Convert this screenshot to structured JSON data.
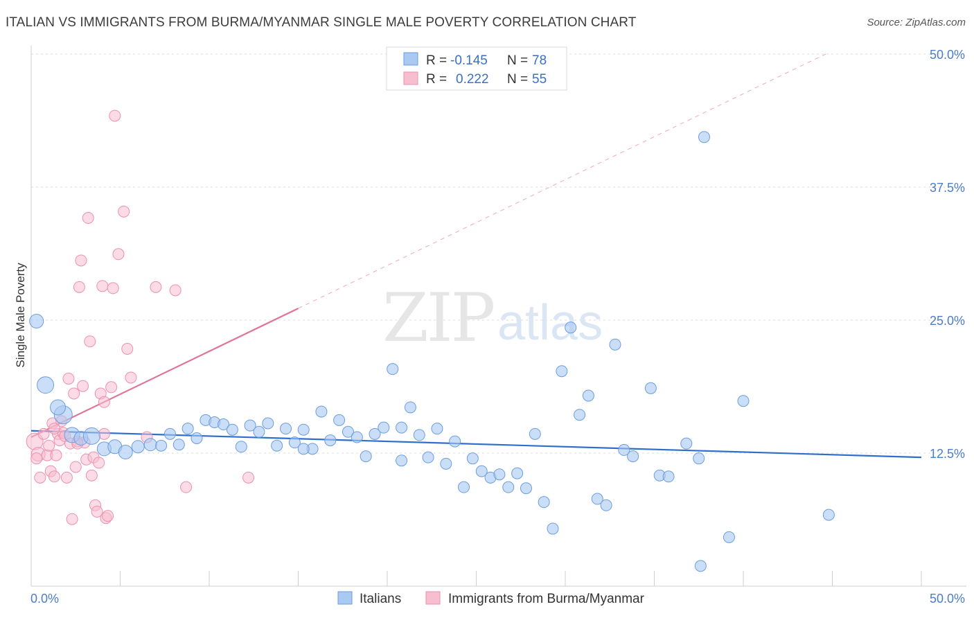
{
  "header": {
    "title": "ITALIAN VS IMMIGRANTS FROM BURMA/MYANMAR SINGLE MALE POVERTY CORRELATION CHART",
    "source": "Source: ZipAtlas.com"
  },
  "watermark": {
    "zip": "ZIP",
    "atlas": "atlas"
  },
  "colors": {
    "italians_fill": "#a9c8f2",
    "italians_stroke": "#6a9de0",
    "italians_line": "#2e6fcb",
    "burma_fill": "#f7bed0",
    "burma_stroke": "#ee8fae",
    "burma_line": "#e0739a",
    "tick_text": "#4a7cc9",
    "grid": "#dcdcdc"
  },
  "legend": {
    "rows": [
      {
        "r_label": "R =",
        "r_value": "-0.145",
        "n_label": "N =",
        "n_value": "78"
      },
      {
        "r_label": "R =",
        "r_value": "0.222",
        "n_label": "N =",
        "n_value": "55"
      }
    ]
  },
  "chart_data": {
    "type": "scatter",
    "title": "ITALIAN VS IMMIGRANTS FROM BURMA/MYANMAR SINGLE MALE POVERTY CORRELATION CHART",
    "xlabel": "",
    "ylabel": "Single Male Poverty",
    "xlim": [
      0,
      50
    ],
    "ylim": [
      0,
      50
    ],
    "x_tick_labels": [
      "0.0%",
      "50.0%"
    ],
    "y_ticks": [
      12.5,
      25.0,
      37.5,
      50.0
    ],
    "y_tick_labels": [
      "12.5%",
      "25.0%",
      "37.5%",
      "50.0%"
    ],
    "grid": true,
    "legend_position": "top-center",
    "series": [
      {
        "name": "Italians",
        "r": -0.145,
        "n": 78,
        "trend": {
          "x": [
            0,
            50
          ],
          "y": [
            14.6,
            12.1
          ]
        },
        "points": [
          [
            0.3,
            24.9,
            10
          ],
          [
            0.8,
            18.9,
            12
          ],
          [
            1.8,
            16.1,
            13
          ],
          [
            1.5,
            16.8,
            11
          ],
          [
            2.3,
            14.2,
            11
          ],
          [
            2.8,
            13.9,
            10
          ],
          [
            3.4,
            14.1,
            12
          ],
          [
            4.1,
            12.9,
            10
          ],
          [
            4.7,
            13.1,
            10
          ],
          [
            5.3,
            12.6,
            10
          ],
          [
            6.0,
            13.1,
            9
          ],
          [
            6.7,
            13.3,
            9
          ],
          [
            7.3,
            13.2,
            8
          ],
          [
            7.8,
            14.3,
            8
          ],
          [
            8.3,
            13.3,
            8
          ],
          [
            8.8,
            14.8,
            8
          ],
          [
            9.3,
            13.9,
            8
          ],
          [
            9.8,
            15.6,
            8
          ],
          [
            10.3,
            15.4,
            8
          ],
          [
            10.8,
            15.2,
            8
          ],
          [
            11.3,
            14.7,
            8
          ],
          [
            11.8,
            13.1,
            8
          ],
          [
            12.3,
            15.1,
            8
          ],
          [
            12.8,
            14.5,
            8
          ],
          [
            13.3,
            15.3,
            8
          ],
          [
            13.8,
            13.2,
            8
          ],
          [
            14.3,
            14.8,
            8
          ],
          [
            14.8,
            13.5,
            8
          ],
          [
            15.3,
            14.7,
            8
          ],
          [
            15.8,
            12.9,
            8
          ],
          [
            16.3,
            16.4,
            8
          ],
          [
            16.8,
            13.7,
            8
          ],
          [
            17.3,
            15.6,
            8
          ],
          [
            17.8,
            14.5,
            8
          ],
          [
            18.3,
            14.0,
            8
          ],
          [
            18.8,
            12.2,
            8
          ],
          [
            19.3,
            14.3,
            8
          ],
          [
            19.8,
            14.9,
            8
          ],
          [
            20.3,
            20.4,
            8
          ],
          [
            20.8,
            11.8,
            8
          ],
          [
            21.3,
            16.8,
            8
          ],
          [
            21.8,
            14.2,
            8
          ],
          [
            22.3,
            12.1,
            8
          ],
          [
            22.8,
            14.8,
            8
          ],
          [
            23.3,
            11.5,
            8
          ],
          [
            23.8,
            13.6,
            8
          ],
          [
            24.3,
            9.3,
            8
          ],
          [
            24.8,
            12.0,
            8
          ],
          [
            25.3,
            10.8,
            8
          ],
          [
            25.8,
            10.2,
            8
          ],
          [
            26.3,
            10.5,
            8
          ],
          [
            26.8,
            9.3,
            8
          ],
          [
            27.3,
            10.6,
            8
          ],
          [
            27.8,
            9.2,
            8
          ],
          [
            28.3,
            14.3,
            8
          ],
          [
            28.8,
            7.9,
            8
          ],
          [
            29.3,
            5.4,
            8
          ],
          [
            29.8,
            20.2,
            8
          ],
          [
            30.3,
            24.3,
            8
          ],
          [
            30.8,
            16.1,
            8
          ],
          [
            31.3,
            17.9,
            8
          ],
          [
            31.8,
            8.2,
            8
          ],
          [
            32.3,
            7.6,
            8
          ],
          [
            32.8,
            22.7,
            8
          ],
          [
            33.3,
            12.8,
            8
          ],
          [
            33.8,
            12.2,
            8
          ],
          [
            34.8,
            18.6,
            8
          ],
          [
            35.3,
            10.4,
            8
          ],
          [
            35.8,
            10.3,
            8
          ],
          [
            36.8,
            13.4,
            8
          ],
          [
            37.5,
            12.0,
            8
          ],
          [
            37.8,
            42.2,
            8
          ],
          [
            37.6,
            1.9,
            8
          ],
          [
            39.2,
            4.6,
            8
          ],
          [
            40.0,
            17.4,
            8
          ],
          [
            44.8,
            6.7,
            8
          ],
          [
            20.8,
            14.9,
            8
          ],
          [
            15.3,
            12.9,
            8
          ]
        ]
      },
      {
        "name": "Immigrants from Burma/Myanmar",
        "r": 0.222,
        "n": 55,
        "trend": {
          "x": [
            0,
            15
          ],
          "y": [
            14.0,
            26.1
          ]
        },
        "points": [
          [
            0.2,
            13.6,
            12
          ],
          [
            0.4,
            12.4,
            10
          ],
          [
            0.3,
            12.0,
            8
          ],
          [
            0.5,
            10.2,
            8
          ],
          [
            0.7,
            14.3,
            8
          ],
          [
            0.9,
            12.3,
            8
          ],
          [
            1.0,
            13.2,
            8
          ],
          [
            1.1,
            10.8,
            8
          ],
          [
            1.2,
            15.3,
            8
          ],
          [
            1.3,
            10.3,
            8
          ],
          [
            1.4,
            12.3,
            8
          ],
          [
            1.5,
            14.3,
            8
          ],
          [
            1.6,
            13.7,
            8
          ],
          [
            1.7,
            15.5,
            8
          ],
          [
            1.8,
            14.4,
            8
          ],
          [
            1.9,
            14.1,
            8
          ],
          [
            2.0,
            10.2,
            8
          ],
          [
            2.1,
            19.5,
            8
          ],
          [
            2.2,
            13.4,
            8
          ],
          [
            2.3,
            6.3,
            8
          ],
          [
            2.4,
            18.1,
            8
          ],
          [
            2.5,
            11.2,
            8
          ],
          [
            2.6,
            13.6,
            8
          ],
          [
            2.7,
            28.1,
            8
          ],
          [
            2.8,
            30.6,
            8
          ],
          [
            2.9,
            18.8,
            8
          ],
          [
            3.0,
            13.5,
            8
          ],
          [
            3.1,
            11.9,
            8
          ],
          [
            3.2,
            34.6,
            8
          ],
          [
            3.3,
            23.0,
            8
          ],
          [
            3.4,
            10.4,
            8
          ],
          [
            3.5,
            12.1,
            8
          ],
          [
            3.6,
            7.6,
            8
          ],
          [
            3.7,
            7.0,
            8
          ],
          [
            3.8,
            11.6,
            8
          ],
          [
            3.9,
            18.1,
            8
          ],
          [
            4.0,
            28.2,
            8
          ],
          [
            4.1,
            17.3,
            8
          ],
          [
            4.2,
            6.4,
            8
          ],
          [
            4.3,
            6.6,
            8
          ],
          [
            4.1,
            14.3,
            8
          ],
          [
            4.5,
            18.7,
            8
          ],
          [
            4.6,
            28.0,
            8
          ],
          [
            4.7,
            44.2,
            8
          ],
          [
            4.9,
            31.2,
            8
          ],
          [
            5.2,
            35.2,
            8
          ],
          [
            5.4,
            22.3,
            8
          ],
          [
            5.6,
            19.6,
            8
          ],
          [
            7.0,
            28.1,
            8
          ],
          [
            8.1,
            27.8,
            8
          ],
          [
            6.5,
            14.0,
            8
          ],
          [
            8.7,
            9.3,
            8
          ],
          [
            12.2,
            10.2,
            8
          ],
          [
            1.3,
            14.8,
            8
          ],
          [
            2.6,
            13.4,
            8
          ]
        ]
      }
    ]
  },
  "bottom_legend": {
    "items": [
      {
        "label": "Italians"
      },
      {
        "label": "Immigrants from Burma/Myanmar"
      }
    ]
  }
}
